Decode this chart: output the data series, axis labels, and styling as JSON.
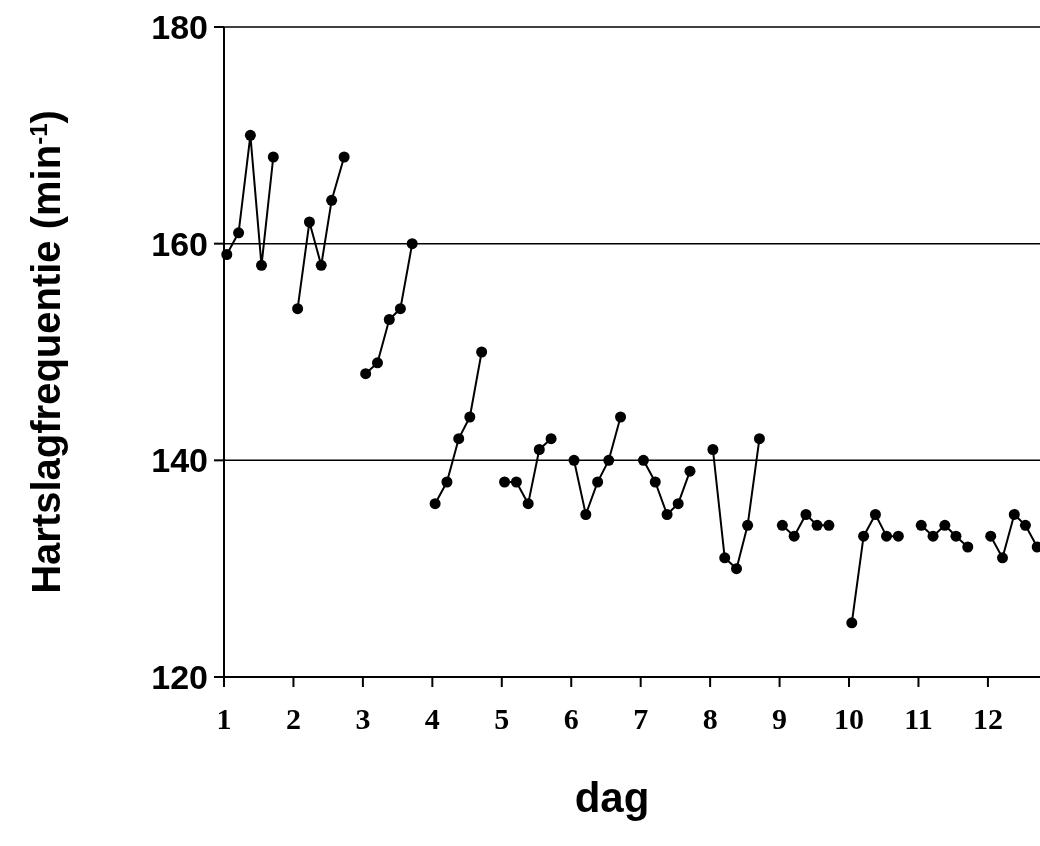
{
  "chart_data": {
    "type": "line",
    "xlabel": "dag",
    "ylabel": "Hartslagfrequentie (min$^{-1}$)",
    "xlim": [
      1,
      12.75
    ],
    "xticks": [
      1,
      2,
      3,
      4,
      5,
      6,
      7,
      8,
      9,
      10,
      11,
      12
    ],
    "ylim": [
      120,
      180
    ],
    "yticks": [
      120,
      140,
      160,
      180
    ],
    "grid": "y",
    "marker": "circle",
    "line_style": "solid",
    "series": [
      {
        "color": "#000000",
        "x": [
          1.04,
          1.21,
          1.38,
          1.54,
          1.71,
          1.88,
          2.06,
          2.23,
          2.4,
          2.55,
          2.73,
          2.88,
          3.04,
          3.21,
          3.38,
          3.54,
          3.71,
          3.88,
          4.04,
          4.21,
          4.38,
          4.54,
          4.71,
          4.88,
          5.04,
          5.21,
          5.38,
          5.54,
          5.71,
          5.88,
          6.04,
          6.21,
          6.38,
          6.54,
          6.71,
          6.88,
          7.04,
          7.21,
          7.38,
          7.54,
          7.71,
          7.88,
          8.04,
          8.21,
          8.38,
          8.54,
          8.71,
          8.88,
          9.04,
          9.21,
          9.38,
          9.54,
          9.71,
          9.88,
          10.04,
          10.21,
          10.38,
          10.54,
          10.71,
          10.88,
          11.04,
          11.21,
          11.38,
          11.54,
          11.71,
          11.88,
          12.04,
          12.21,
          12.38,
          12.54,
          12.71
        ],
        "values": [
          159,
          161,
          170,
          158,
          168,
          null,
          154,
          162,
          158,
          164,
          168,
          null,
          148,
          149,
          153,
          154,
          160,
          null,
          136,
          138,
          142,
          144,
          150,
          null,
          138,
          138,
          136,
          141,
          142,
          null,
          140,
          135,
          138,
          140,
          144,
          null,
          140,
          138,
          135,
          136,
          139,
          null,
          141,
          131,
          130,
          134,
          142,
          null,
          134,
          133,
          135,
          134,
          134,
          null,
          125,
          133,
          135,
          133,
          133,
          null,
          134,
          133,
          134,
          133,
          132,
          null,
          133,
          131,
          135,
          134,
          132
        ]
      }
    ]
  }
}
